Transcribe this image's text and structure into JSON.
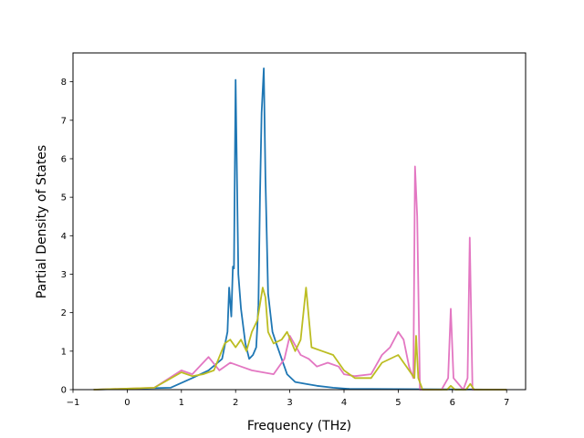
{
  "chart_data": {
    "type": "line",
    "title": "",
    "xlabel": "Frequency (THz)",
    "ylabel": "Partial Density of States",
    "xlim": [
      -1,
      7.35
    ],
    "ylim": [
      0,
      8.75
    ],
    "xticks": [
      -1,
      0,
      1,
      2,
      3,
      4,
      5,
      6,
      7
    ],
    "yticks": [
      0,
      1,
      2,
      3,
      4,
      5,
      6,
      7,
      8
    ],
    "grid": false,
    "legend": "none",
    "series": [
      {
        "color": "#1f77b4",
        "x": [
          -0.62,
          0.8,
          1.2,
          1.5,
          1.75,
          1.85,
          1.88,
          1.92,
          1.95,
          1.97,
          2.0,
          2.05,
          2.1,
          2.18,
          2.25,
          2.32,
          2.38,
          2.42,
          2.45,
          2.48,
          2.52,
          2.55,
          2.6,
          2.68,
          2.75,
          2.85,
          2.95,
          3.1,
          3.3,
          3.5,
          3.8,
          4.1,
          7.0
        ],
        "y": [
          0,
          0.05,
          0.3,
          0.5,
          0.8,
          1.5,
          2.65,
          1.9,
          3.2,
          3.15,
          8.05,
          3.0,
          2.1,
          1.2,
          0.8,
          0.9,
          1.1,
          2.2,
          5.0,
          7.2,
          8.35,
          5.5,
          2.5,
          1.5,
          1.2,
          0.8,
          0.4,
          0.2,
          0.15,
          0.1,
          0.05,
          0.02,
          0
        ]
      },
      {
        "color": "#e377c2",
        "x": [
          -0.62,
          0.5,
          1.0,
          1.2,
          1.4,
          1.5,
          1.7,
          1.9,
          2.1,
          2.3,
          2.5,
          2.7,
          2.9,
          3.0,
          3.2,
          3.35,
          3.5,
          3.7,
          3.9,
          4.0,
          4.2,
          4.5,
          4.7,
          4.85,
          5.0,
          5.1,
          5.2,
          5.28,
          5.31,
          5.35,
          5.4,
          5.8,
          5.92,
          5.97,
          6.02,
          6.2,
          6.28,
          6.32,
          6.37,
          7.0
        ],
        "y": [
          0,
          0.05,
          0.5,
          0.4,
          0.7,
          0.85,
          0.5,
          0.7,
          0.6,
          0.5,
          0.45,
          0.4,
          0.8,
          1.4,
          0.9,
          0.8,
          0.6,
          0.7,
          0.6,
          0.4,
          0.35,
          0.4,
          0.9,
          1.1,
          1.5,
          1.3,
          0.6,
          0.3,
          5.8,
          4.5,
          0,
          0,
          0.3,
          2.1,
          0.3,
          0,
          0.3,
          3.95,
          0,
          0
        ]
      },
      {
        "color": "#bcbd22",
        "x": [
          -0.62,
          0.5,
          1.0,
          1.2,
          1.4,
          1.6,
          1.8,
          1.9,
          2.0,
          2.1,
          2.2,
          2.3,
          2.4,
          2.5,
          2.55,
          2.6,
          2.7,
          2.85,
          2.95,
          3.1,
          3.2,
          3.3,
          3.4,
          3.6,
          3.8,
          4.0,
          4.2,
          4.5,
          4.7,
          5.0,
          5.2,
          5.3,
          5.33,
          5.37,
          5.45,
          5.9,
          5.97,
          6.05,
          6.25,
          6.33,
          6.4,
          7.0
        ],
        "y": [
          0,
          0.05,
          0.45,
          0.35,
          0.4,
          0.5,
          1.2,
          1.3,
          1.1,
          1.3,
          1.0,
          1.5,
          1.8,
          2.65,
          2.4,
          1.5,
          1.2,
          1.3,
          1.5,
          1.0,
          1.3,
          2.65,
          1.1,
          1.0,
          0.9,
          0.5,
          0.3,
          0.3,
          0.7,
          0.9,
          0.5,
          0.3,
          1.4,
          0.3,
          0,
          0,
          0.1,
          0,
          0,
          0.15,
          0,
          0
        ]
      }
    ]
  }
}
